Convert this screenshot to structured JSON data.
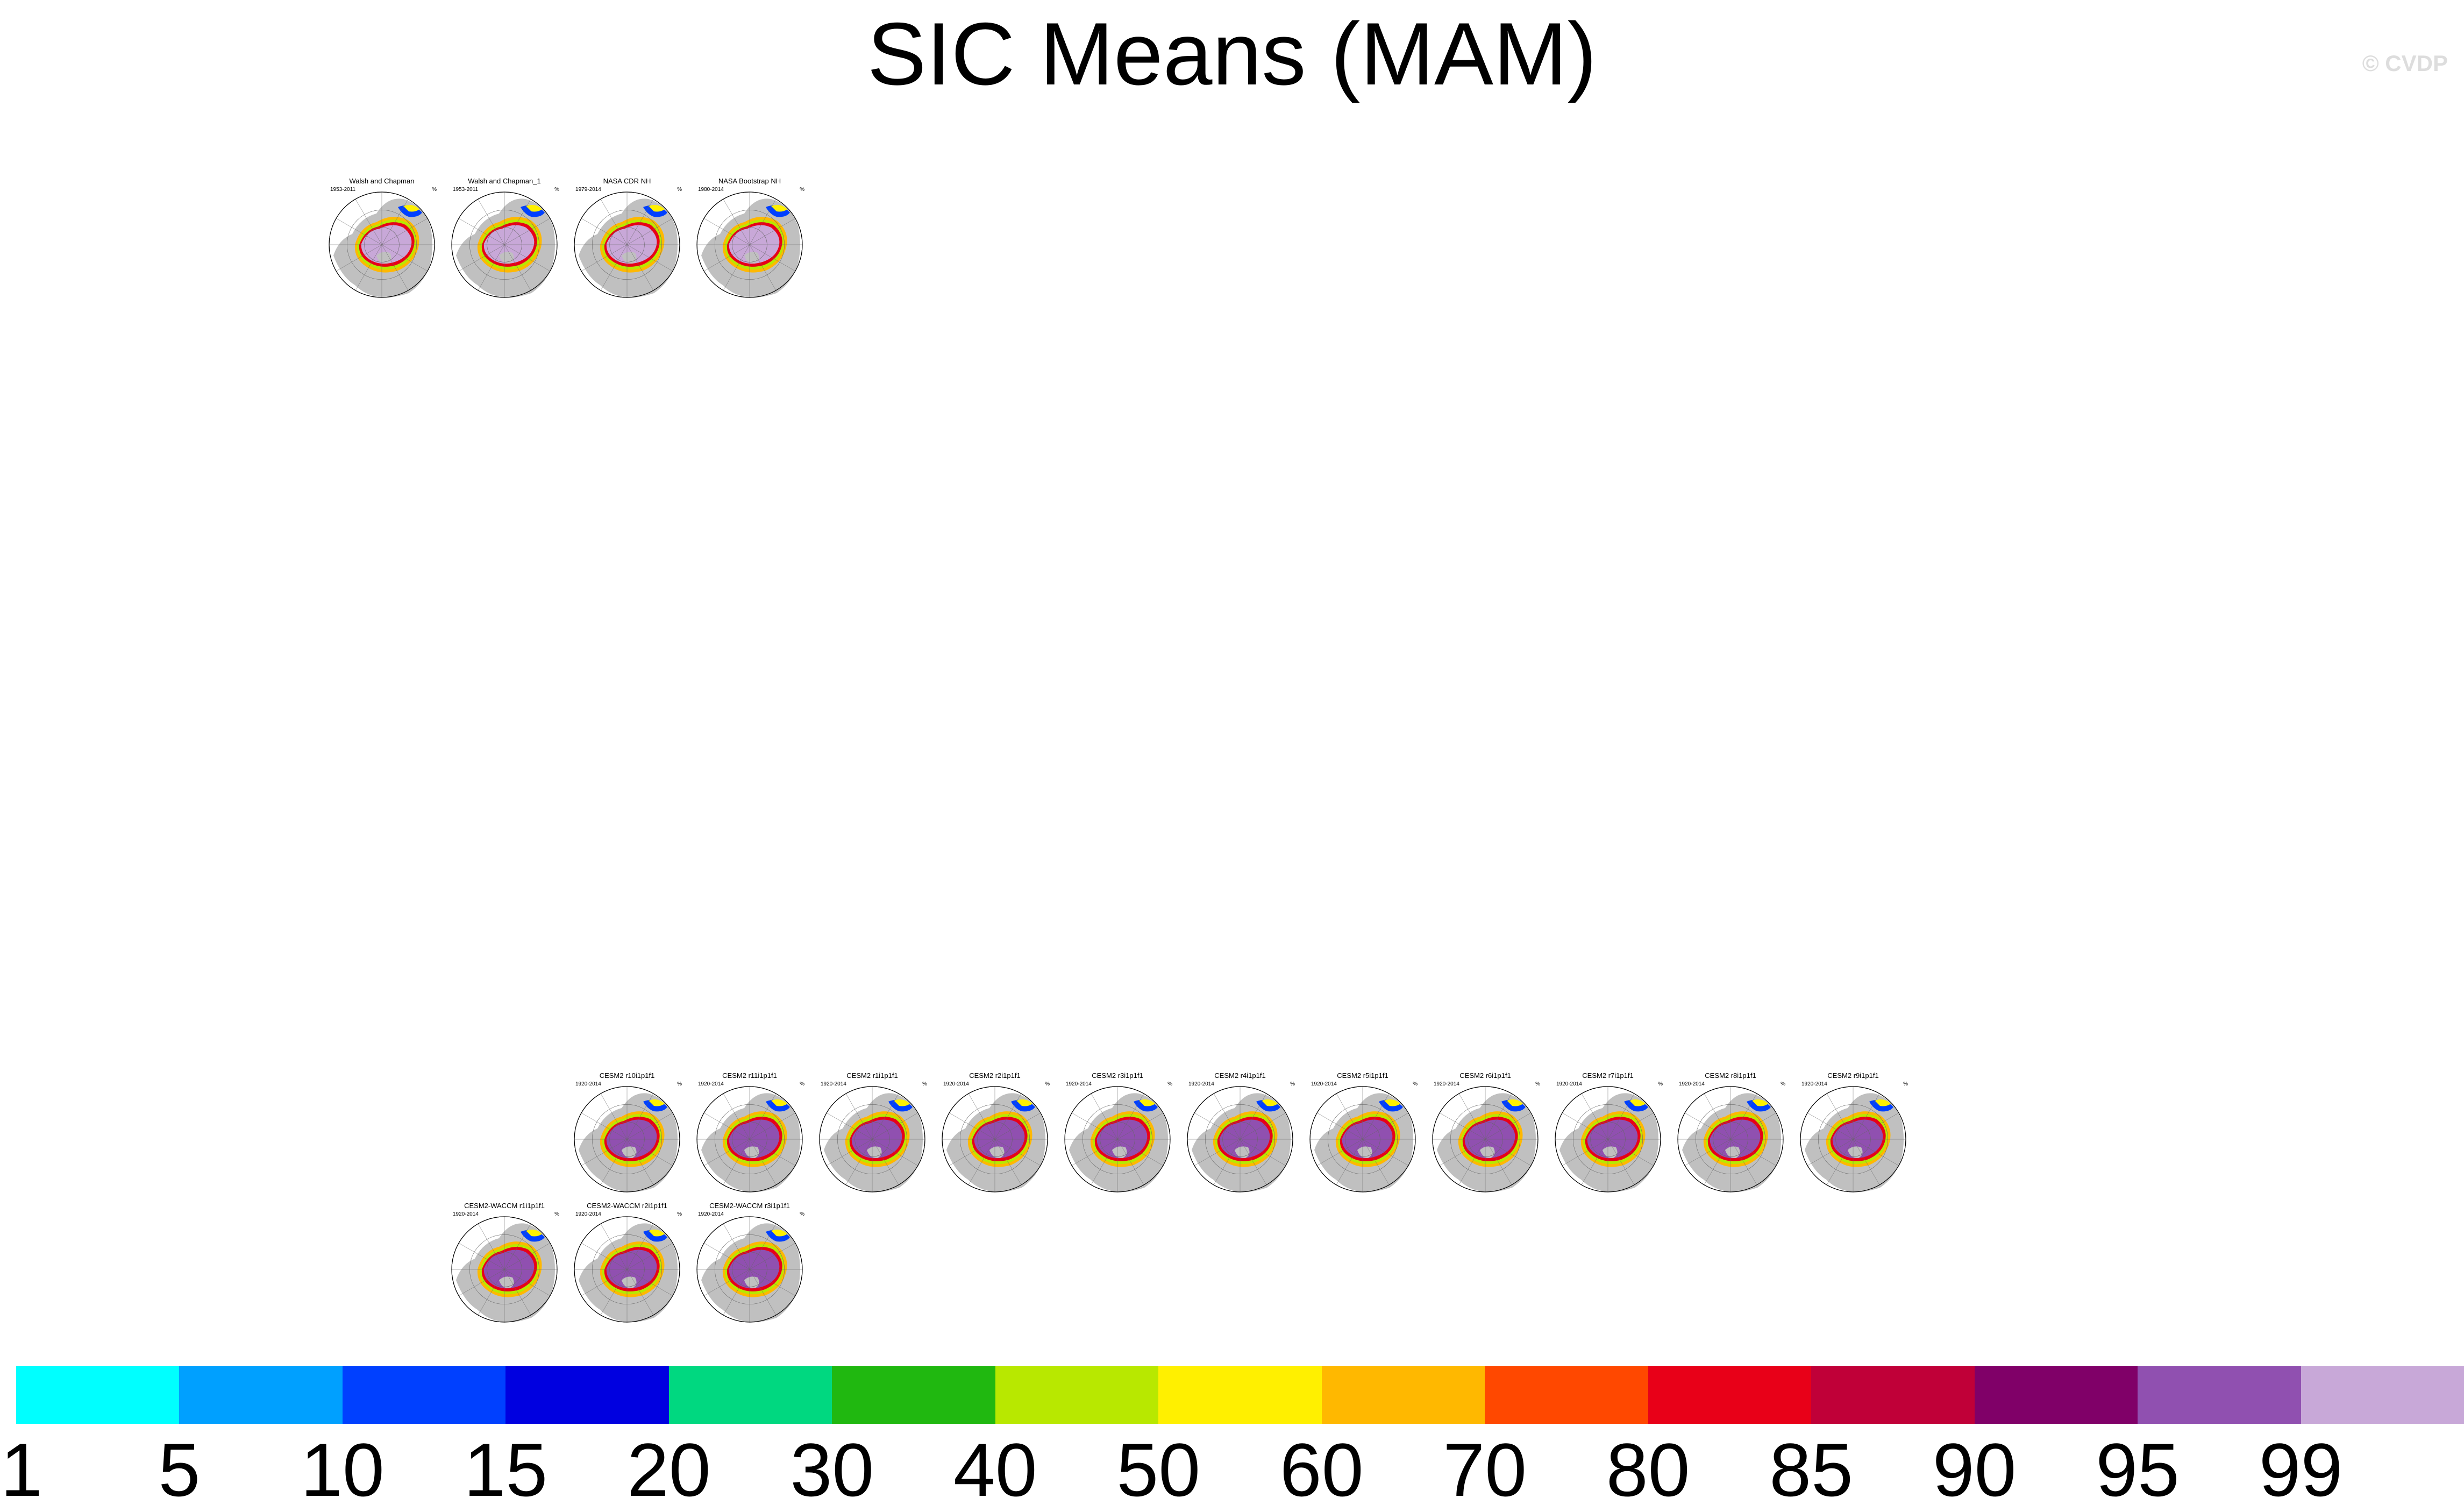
{
  "title": "SIC Means (MAM)",
  "watermark": "© CVDP",
  "unit": "%",
  "observations": [
    {
      "title": "Walsh and Chapman",
      "years": "1953-2011"
    },
    {
      "title": "Walsh and Chapman_1",
      "years": "1953-2011"
    },
    {
      "title": "NASA CDR NH",
      "years": "1979-2014"
    },
    {
      "title": "NASA Bootstrap NH",
      "years": "1980-2014"
    }
  ],
  "cesm2": [
    {
      "title": "CESM2 r10i1p1f1",
      "years": "1920-2014"
    },
    {
      "title": "CESM2 r11i1p1f1",
      "years": "1920-2014"
    },
    {
      "title": "CESM2 r1i1p1f1",
      "years": "1920-2014"
    },
    {
      "title": "CESM2 r2i1p1f1",
      "years": "1920-2014"
    },
    {
      "title": "CESM2 r3i1p1f1",
      "years": "1920-2014"
    },
    {
      "title": "CESM2 r4i1p1f1",
      "years": "1920-2014"
    },
    {
      "title": "CESM2 r5i1p1f1",
      "years": "1920-2014"
    },
    {
      "title": "CESM2 r6i1p1f1",
      "years": "1920-2014"
    },
    {
      "title": "CESM2 r7i1p1f1",
      "years": "1920-2014"
    },
    {
      "title": "CESM2 r8i1p1f1",
      "years": "1920-2014"
    },
    {
      "title": "CESM2 r9i1p1f1",
      "years": "1920-2014"
    }
  ],
  "waccm": [
    {
      "title": "CESM2-WACCM r1i1p1f1",
      "years": "1920-2014"
    },
    {
      "title": "CESM2-WACCM r2i1p1f1",
      "years": "1920-2014"
    },
    {
      "title": "CESM2-WACCM r3i1p1f1",
      "years": "1920-2014"
    }
  ],
  "colorbar": {
    "colors": [
      "#00ffff",
      "#00a0ff",
      "#0040ff",
      "#0000e0",
      "#00d880",
      "#20b810",
      "#b8e800",
      "#fff000",
      "#ffb800",
      "#ff4800",
      "#e80018",
      "#c00038",
      "#800068",
      "#9050b0",
      "#c8a8d8"
    ],
    "labels": [
      "1",
      "5",
      "10",
      "15",
      "20",
      "30",
      "40",
      "50",
      "60",
      "70",
      "80",
      "85",
      "90",
      "95",
      "99"
    ]
  },
  "palette": {
    "land": "#c0c0c0",
    "ice_obs": "#c8a8d8",
    "ice_model": "#9050b0"
  }
}
